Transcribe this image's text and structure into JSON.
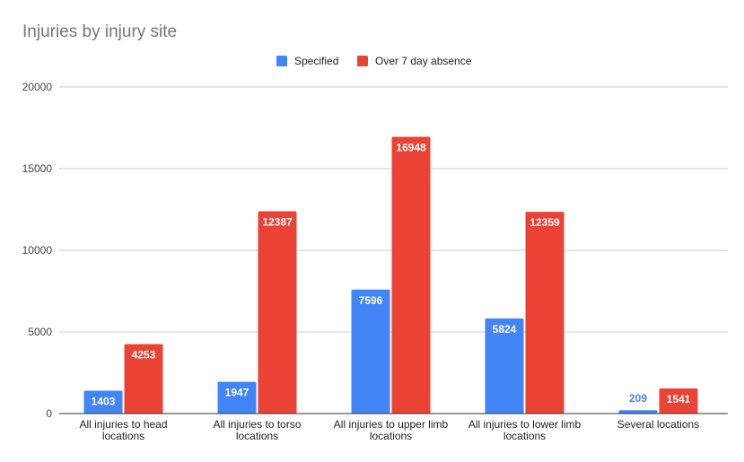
{
  "chart_data": {
    "type": "bar",
    "title": "Injuries by injury site",
    "xlabel": "",
    "ylabel": "",
    "ylim": [
      0,
      20000
    ],
    "yticks": [
      "0",
      "5000",
      "10000",
      "15000",
      "20000"
    ],
    "categories": [
      [
        "All injuries to head",
        "locations"
      ],
      [
        "All injuries to torso",
        "locations"
      ],
      [
        "All injuries to upper limb",
        "locations"
      ],
      [
        "All injuries to lower limb",
        "locations"
      ],
      [
        "Several locations"
      ]
    ],
    "series": [
      {
        "name": "Specified",
        "color": "#4285f4",
        "values": [
          1403,
          1947,
          7596,
          5824,
          209
        ]
      },
      {
        "name": "Over 7 day absence",
        "color": "#ea4335",
        "values": [
          4253,
          12387,
          16948,
          12359,
          1541
        ]
      }
    ],
    "grid": true,
    "legend_position": "top-center"
  }
}
